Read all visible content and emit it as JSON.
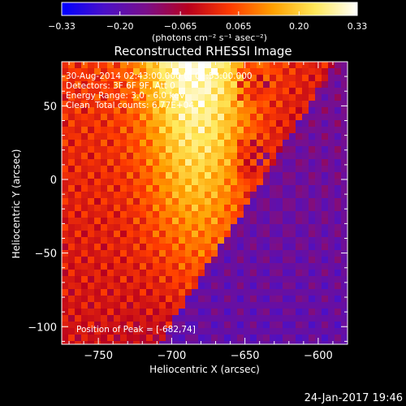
{
  "chart_data": {
    "type": "heatmap",
    "title": "Reconstructed RHESSI Image",
    "xlabel": "Heliocentric X (arcsec)",
    "ylabel": "Heliocentric Y (arcsec)",
    "xlim": [
      -775,
      -580
    ],
    "ylim": [
      -112,
      80
    ],
    "x_ticks": [
      -750,
      -700,
      -650,
      -600
    ],
    "x_tick_labels": [
      "−750",
      "−700",
      "−650",
      "−600"
    ],
    "y_ticks": [
      -100,
      -50,
      0,
      50
    ],
    "y_tick_labels": [
      "−100",
      "−50",
      "0",
      "50"
    ],
    "colorbar": {
      "min": -0.33,
      "max": 0.33,
      "ticks": [
        -0.33,
        -0.2,
        -0.065,
        0.065,
        0.2,
        0.33
      ],
      "tick_labels": [
        "−0.33",
        "−0.20",
        "−0.065",
        "0.065",
        "0.20",
        "0.33"
      ],
      "unit_label": "(photons cm⁻² s⁻¹ asec⁻²)",
      "colormap": [
        "#0000ff",
        "#4a10c8",
        "#7a0f8a",
        "#b8001e",
        "#ff3c00",
        "#ffa000",
        "#ffe85a",
        "#ffffff"
      ]
    },
    "annotations": {
      "time_range": "30-Aug-2014 02:43:00.000 to 02:53:00.000",
      "detectors": "Detectors: 3F 6F 9F, Att 0",
      "energy_range": "Energy Range: 3.0 - 6.0 keV",
      "method": "Clean",
      "total_counts": "Total counts: 6.77E+04",
      "peak": "Position of Peak = [-682,74]"
    },
    "peak_position": [
      -682,
      74
    ]
  },
  "footer": {
    "timestamp": "24-Jan-2017 19:46"
  }
}
